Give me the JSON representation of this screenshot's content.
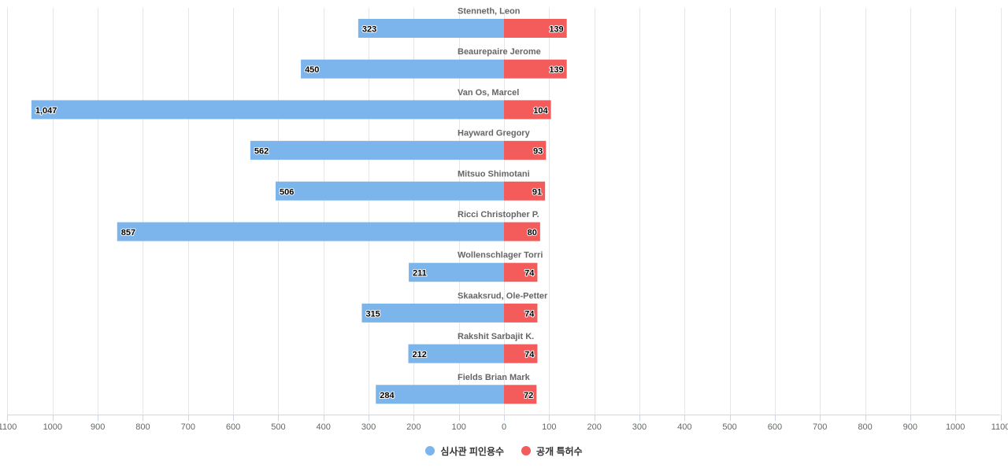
{
  "chart_data": {
    "type": "bar",
    "orientation": "horizontal-diverging",
    "categories": [
      "Stenneth, Leon",
      "Beaurepaire Jerome",
      "Van Os, Marcel",
      "Hayward Gregory",
      "Mitsuo Shimotani",
      "Ricci Christopher P.",
      "Wollenschlager Torri",
      "Skaaksrud, Ole-Petter",
      "Rakshit Sarbajit K.",
      "Fields Brian Mark"
    ],
    "series": [
      {
        "name": "심사관 피인용수",
        "color": "#7cb5ec",
        "direction": "left",
        "values": [
          323,
          450,
          1047,
          562,
          506,
          857,
          211,
          315,
          212,
          284
        ],
        "labels": [
          "323",
          "450",
          "1,047",
          "562",
          "506",
          "857",
          "211",
          "315",
          "212",
          "284"
        ]
      },
      {
        "name": "공개 특허수",
        "color": "#f45b5b",
        "direction": "right",
        "values": [
          139,
          139,
          104,
          93,
          91,
          80,
          74,
          74,
          74,
          72
        ],
        "labels": [
          "139",
          "139",
          "104",
          "93",
          "91",
          "80",
          "74",
          "74",
          "74",
          "72"
        ]
      }
    ],
    "xlim": [
      -1100,
      1100
    ],
    "x_ticks": [
      -1100,
      -1000,
      -900,
      -800,
      -700,
      -600,
      -500,
      -400,
      -300,
      -200,
      -100,
      0,
      100,
      200,
      300,
      400,
      500,
      600,
      700,
      800,
      900,
      1000,
      1100
    ],
    "x_tick_labels": [
      "1100",
      "1000",
      "900",
      "800",
      "700",
      "600",
      "500",
      "400",
      "300",
      "200",
      "100",
      "0",
      "100",
      "200",
      "300",
      "400",
      "500",
      "600",
      "700",
      "800",
      "900",
      "1000",
      "1100"
    ],
    "grid": true,
    "legend_position": "bottom-center"
  },
  "legend": {
    "items": [
      {
        "label": "심사관 피인용수",
        "color": "#7cb5ec"
      },
      {
        "label": "공개 특허수",
        "color": "#f45b5b"
      }
    ]
  }
}
